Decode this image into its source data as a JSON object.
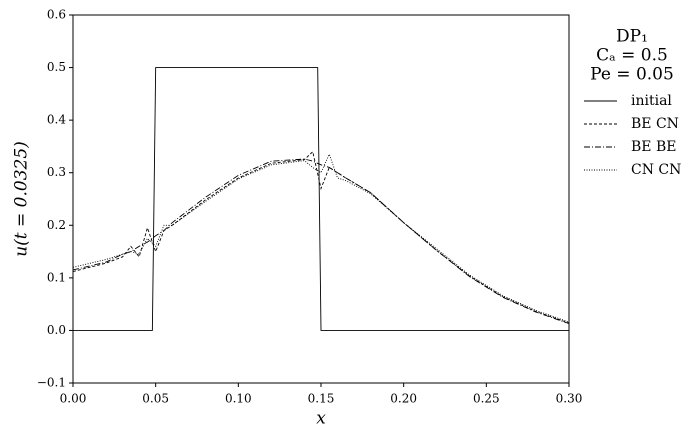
{
  "chart_data": {
    "type": "line",
    "xlabel": "x",
    "ylabel": "u(t = 0.0325)",
    "legend_title": [
      "DP₁",
      "Cₐ = 0.5",
      "Pe = 0.05"
    ],
    "legend": "outside-right",
    "xlim": [
      0,
      0.3
    ],
    "ylim": [
      -0.1,
      0.6
    ],
    "xticks": [
      {
        "value": 0,
        "label": "0.00"
      },
      {
        "value": 0.05,
        "label": "0.05"
      },
      {
        "value": 0.1,
        "label": "0.10"
      },
      {
        "value": 0.15,
        "label": "0.15"
      },
      {
        "value": 0.2,
        "label": "0.20"
      },
      {
        "value": 0.25,
        "label": "0.25"
      },
      {
        "value": 0.3,
        "label": "0.30"
      }
    ],
    "yticks": [
      {
        "value": -0.1,
        "label": "−0.1"
      },
      {
        "value": 0,
        "label": "0.0"
      },
      0.1,
      0.2,
      0.3,
      0.4,
      0.5,
      0.6
    ],
    "series": [
      {
        "name": "initial",
        "color": "#000000",
        "dash": "none",
        "x": [
          0,
          0.048,
          0.05,
          0.148,
          0.15,
          0.3
        ],
        "values": [
          0,
          0,
          0.5,
          0.5,
          0,
          0
        ]
      },
      {
        "name": "BE CN",
        "color": "#000000",
        "dash": "3,2",
        "x": [
          0,
          0.02,
          0.03,
          0.035,
          0.04,
          0.045,
          0.05,
          0.055,
          0.06,
          0.08,
          0.1,
          0.12,
          0.14,
          0.145,
          0.15,
          0.155,
          0.16,
          0.165,
          0.18,
          0.2,
          0.22,
          0.24,
          0.26,
          0.28,
          0.3
        ],
        "values": [
          0.112,
          0.128,
          0.14,
          0.16,
          0.14,
          0.195,
          0.15,
          0.19,
          0.2,
          0.248,
          0.29,
          0.318,
          0.325,
          0.34,
          0.27,
          0.31,
          0.3,
          0.29,
          0.262,
          0.205,
          0.152,
          0.103,
          0.064,
          0.036,
          0.014
        ]
      },
      {
        "name": "BE BE",
        "color": "#000000",
        "dash": "6,2,1,2",
        "x": [
          0,
          0.02,
          0.03,
          0.035,
          0.04,
          0.045,
          0.05,
          0.055,
          0.06,
          0.08,
          0.1,
          0.12,
          0.14,
          0.145,
          0.15,
          0.155,
          0.16,
          0.165,
          0.18,
          0.2,
          0.22,
          0.24,
          0.26,
          0.28,
          0.3
        ],
        "values": [
          0.115,
          0.13,
          0.145,
          0.15,
          0.16,
          0.168,
          0.18,
          0.19,
          0.205,
          0.253,
          0.295,
          0.322,
          0.326,
          0.322,
          0.315,
          0.31,
          0.3,
          0.29,
          0.262,
          0.205,
          0.152,
          0.102,
          0.063,
          0.035,
          0.013
        ]
      },
      {
        "name": "CN CN",
        "color": "#000000",
        "dash": "1,1.5",
        "x": [
          0,
          0.02,
          0.03,
          0.035,
          0.04,
          0.045,
          0.05,
          0.055,
          0.06,
          0.08,
          0.1,
          0.12,
          0.14,
          0.145,
          0.15,
          0.155,
          0.16,
          0.165,
          0.18,
          0.2,
          0.22,
          0.24,
          0.26,
          0.28,
          0.3
        ],
        "values": [
          0.12,
          0.135,
          0.145,
          0.15,
          0.145,
          0.175,
          0.16,
          0.2,
          0.2,
          0.245,
          0.288,
          0.315,
          0.323,
          0.31,
          0.3,
          0.335,
          0.29,
          0.285,
          0.26,
          0.205,
          0.155,
          0.105,
          0.066,
          0.038,
          0.016
        ]
      }
    ]
  }
}
